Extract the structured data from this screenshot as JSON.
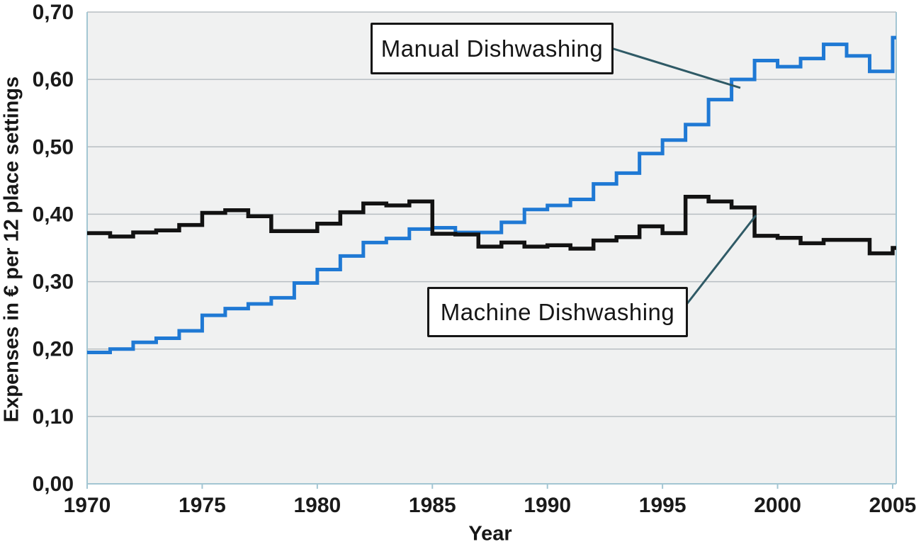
{
  "figure": {
    "y_axis_title": "Expenses in € per 12 place settings",
    "x_axis_title": "Year",
    "y_tick_labels": [
      "0,00",
      "0,10",
      "0,20",
      "0,30",
      "0,40",
      "0,50",
      "0,60",
      "0,70"
    ],
    "x_tick_labels": [
      "1970",
      "1975",
      "1980",
      "1985",
      "1990",
      "1995",
      "2000",
      "2005"
    ]
  },
  "callouts": {
    "manual": {
      "label": "Manual Dishwashing"
    },
    "machine": {
      "label": "Machine Dishwashing"
    }
  },
  "colors": {
    "manual_line": "#1f79d4",
    "machine_line": "#121212",
    "plot_background": "#f0f1f1",
    "gridline": "#b7bec2",
    "axis_line": "#a3c6d3",
    "connector": "#2f5a66",
    "tick_text": "#1a1a1a"
  },
  "chart_data": {
    "type": "line",
    "step": true,
    "title": "",
    "xlabel": "Year",
    "ylabel": "Expenses in € per 12 place settings",
    "xlim": [
      1970,
      2005
    ],
    "ylim": [
      0,
      0.7
    ],
    "x_ticks": [
      1970,
      1975,
      1980,
      1985,
      1990,
      1995,
      2000,
      2005
    ],
    "y_ticks": [
      0.0,
      0.1,
      0.2,
      0.3,
      0.4,
      0.5,
      0.6,
      0.7
    ],
    "grid": "horizontal",
    "legend_position": "callout-boxes",
    "x": [
      1970,
      1971,
      1972,
      1973,
      1974,
      1975,
      1976,
      1977,
      1978,
      1979,
      1980,
      1981,
      1982,
      1983,
      1984,
      1985,
      1986,
      1987,
      1988,
      1989,
      1990,
      1991,
      1992,
      1993,
      1994,
      1995,
      1996,
      1997,
      1998,
      1999,
      2000,
      2001,
      2002,
      2003,
      2004,
      2005
    ],
    "series": [
      {
        "name": "Manual Dishwashing",
        "color": "#1f79d4",
        "values": [
          0.195,
          0.2,
          0.21,
          0.216,
          0.227,
          0.25,
          0.26,
          0.267,
          0.276,
          0.298,
          0.318,
          0.338,
          0.358,
          0.364,
          0.378,
          0.38,
          0.373,
          0.373,
          0.388,
          0.407,
          0.413,
          0.422,
          0.445,
          0.461,
          0.49,
          0.51,
          0.533,
          0.57,
          0.6,
          0.628,
          0.619,
          0.631,
          0.652,
          0.635,
          0.612,
          0.662
        ]
      },
      {
        "name": "Machine Dishwashing",
        "color": "#121212",
        "values": [
          0.372,
          0.367,
          0.373,
          0.376,
          0.384,
          0.402,
          0.406,
          0.397,
          0.375,
          0.375,
          0.386,
          0.403,
          0.416,
          0.413,
          0.419,
          0.371,
          0.37,
          0.352,
          0.358,
          0.352,
          0.354,
          0.349,
          0.361,
          0.366,
          0.382,
          0.372,
          0.426,
          0.419,
          0.41,
          0.368,
          0.365,
          0.357,
          0.362,
          0.362,
          0.342,
          0.35
        ]
      }
    ]
  }
}
